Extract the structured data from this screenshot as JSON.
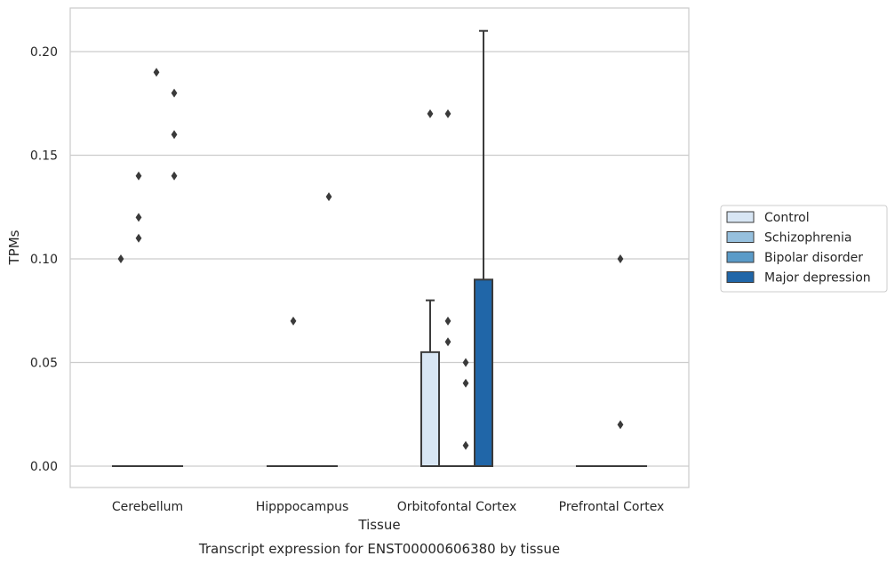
{
  "chart_data": {
    "type": "box",
    "xlabel": "Tissue",
    "ylabel": "TPMs",
    "caption": "Transcript expression for ENST00000606380 by tissue",
    "ylim": [
      -0.0105,
      0.2205
    ],
    "yticks": [
      "0.00",
      "0.05",
      "0.10",
      "0.15",
      "0.20"
    ],
    "grid": true,
    "legend_position": "right",
    "categories": [
      "Cerebellum",
      "Hipppocampus",
      "Orbitofontal Cortex",
      "Prefrontal Cortex"
    ],
    "series": [
      {
        "name": "Control",
        "color": "#d8e6f4"
      },
      {
        "name": "Schizophrenia",
        "color": "#96c0de"
      },
      {
        "name": "Bipolar disorder",
        "color": "#5a9bc8"
      },
      {
        "name": "Major depression",
        "color": "#2066a8"
      }
    ],
    "boxes": [
      {
        "category": "Cerebellum",
        "series": "Control",
        "q1": 0,
        "median": 0,
        "q3": 0,
        "whisker_low": 0,
        "whisker_high": 0,
        "outliers": [
          0.1
        ]
      },
      {
        "category": "Cerebellum",
        "series": "Schizophrenia",
        "q1": 0,
        "median": 0,
        "q3": 0,
        "whisker_low": 0,
        "whisker_high": 0,
        "outliers": [
          0.14,
          0.12,
          0.11
        ]
      },
      {
        "category": "Cerebellum",
        "series": "Bipolar disorder",
        "q1": 0,
        "median": 0,
        "q3": 0,
        "whisker_low": 0,
        "whisker_high": 0,
        "outliers": [
          0.19
        ]
      },
      {
        "category": "Cerebellum",
        "series": "Major depression",
        "q1": 0,
        "median": 0,
        "q3": 0,
        "whisker_low": 0,
        "whisker_high": 0,
        "outliers": [
          0.18,
          0.16,
          0.14
        ]
      },
      {
        "category": "Hipppocampus",
        "series": "Control",
        "q1": 0,
        "median": 0,
        "q3": 0,
        "whisker_low": 0,
        "whisker_high": 0,
        "outliers": []
      },
      {
        "category": "Hipppocampus",
        "series": "Schizophrenia",
        "q1": 0,
        "median": 0,
        "q3": 0,
        "whisker_low": 0,
        "whisker_high": 0,
        "outliers": [
          0.07
        ]
      },
      {
        "category": "Hipppocampus",
        "series": "Bipolar disorder",
        "q1": 0,
        "median": 0,
        "q3": 0,
        "whisker_low": 0,
        "whisker_high": 0,
        "outliers": []
      },
      {
        "category": "Hipppocampus",
        "series": "Major depression",
        "q1": 0,
        "median": 0,
        "q3": 0,
        "whisker_low": 0,
        "whisker_high": 0,
        "outliers": [
          0.13
        ]
      },
      {
        "category": "Orbitofontal Cortex",
        "series": "Control",
        "q1": 0,
        "median": 0,
        "q3": 0.055,
        "whisker_low": 0,
        "whisker_high": 0.08,
        "outliers": [
          0.17
        ]
      },
      {
        "category": "Orbitofontal Cortex",
        "series": "Schizophrenia",
        "q1": 0,
        "median": 0,
        "q3": 0,
        "whisker_low": 0,
        "whisker_high": 0,
        "outliers": [
          0.17,
          0.07,
          0.06
        ]
      },
      {
        "category": "Orbitofontal Cortex",
        "series": "Bipolar disorder",
        "q1": 0,
        "median": 0,
        "q3": 0,
        "whisker_low": 0,
        "whisker_high": 0,
        "outliers": [
          0.05,
          0.04,
          0.01
        ]
      },
      {
        "category": "Orbitofontal Cortex",
        "series": "Major depression",
        "q1": 0,
        "median": 0,
        "q3": 0.09,
        "whisker_low": 0,
        "whisker_high": 0.21,
        "outliers": []
      },
      {
        "category": "Prefrontal Cortex",
        "series": "Control",
        "q1": 0,
        "median": 0,
        "q3": 0,
        "whisker_low": 0,
        "whisker_high": 0,
        "outliers": []
      },
      {
        "category": "Prefrontal Cortex",
        "series": "Schizophrenia",
        "q1": 0,
        "median": 0,
        "q3": 0,
        "whisker_low": 0,
        "whisker_high": 0,
        "outliers": []
      },
      {
        "category": "Prefrontal Cortex",
        "series": "Bipolar disorder",
        "q1": 0,
        "median": 0,
        "q3": 0,
        "whisker_low": 0,
        "whisker_high": 0,
        "outliers": [
          0.1,
          0.02
        ]
      },
      {
        "category": "Prefrontal Cortex",
        "series": "Major depression",
        "q1": 0,
        "median": 0,
        "q3": 0,
        "whisker_low": 0,
        "whisker_high": 0,
        "outliers": []
      }
    ]
  }
}
